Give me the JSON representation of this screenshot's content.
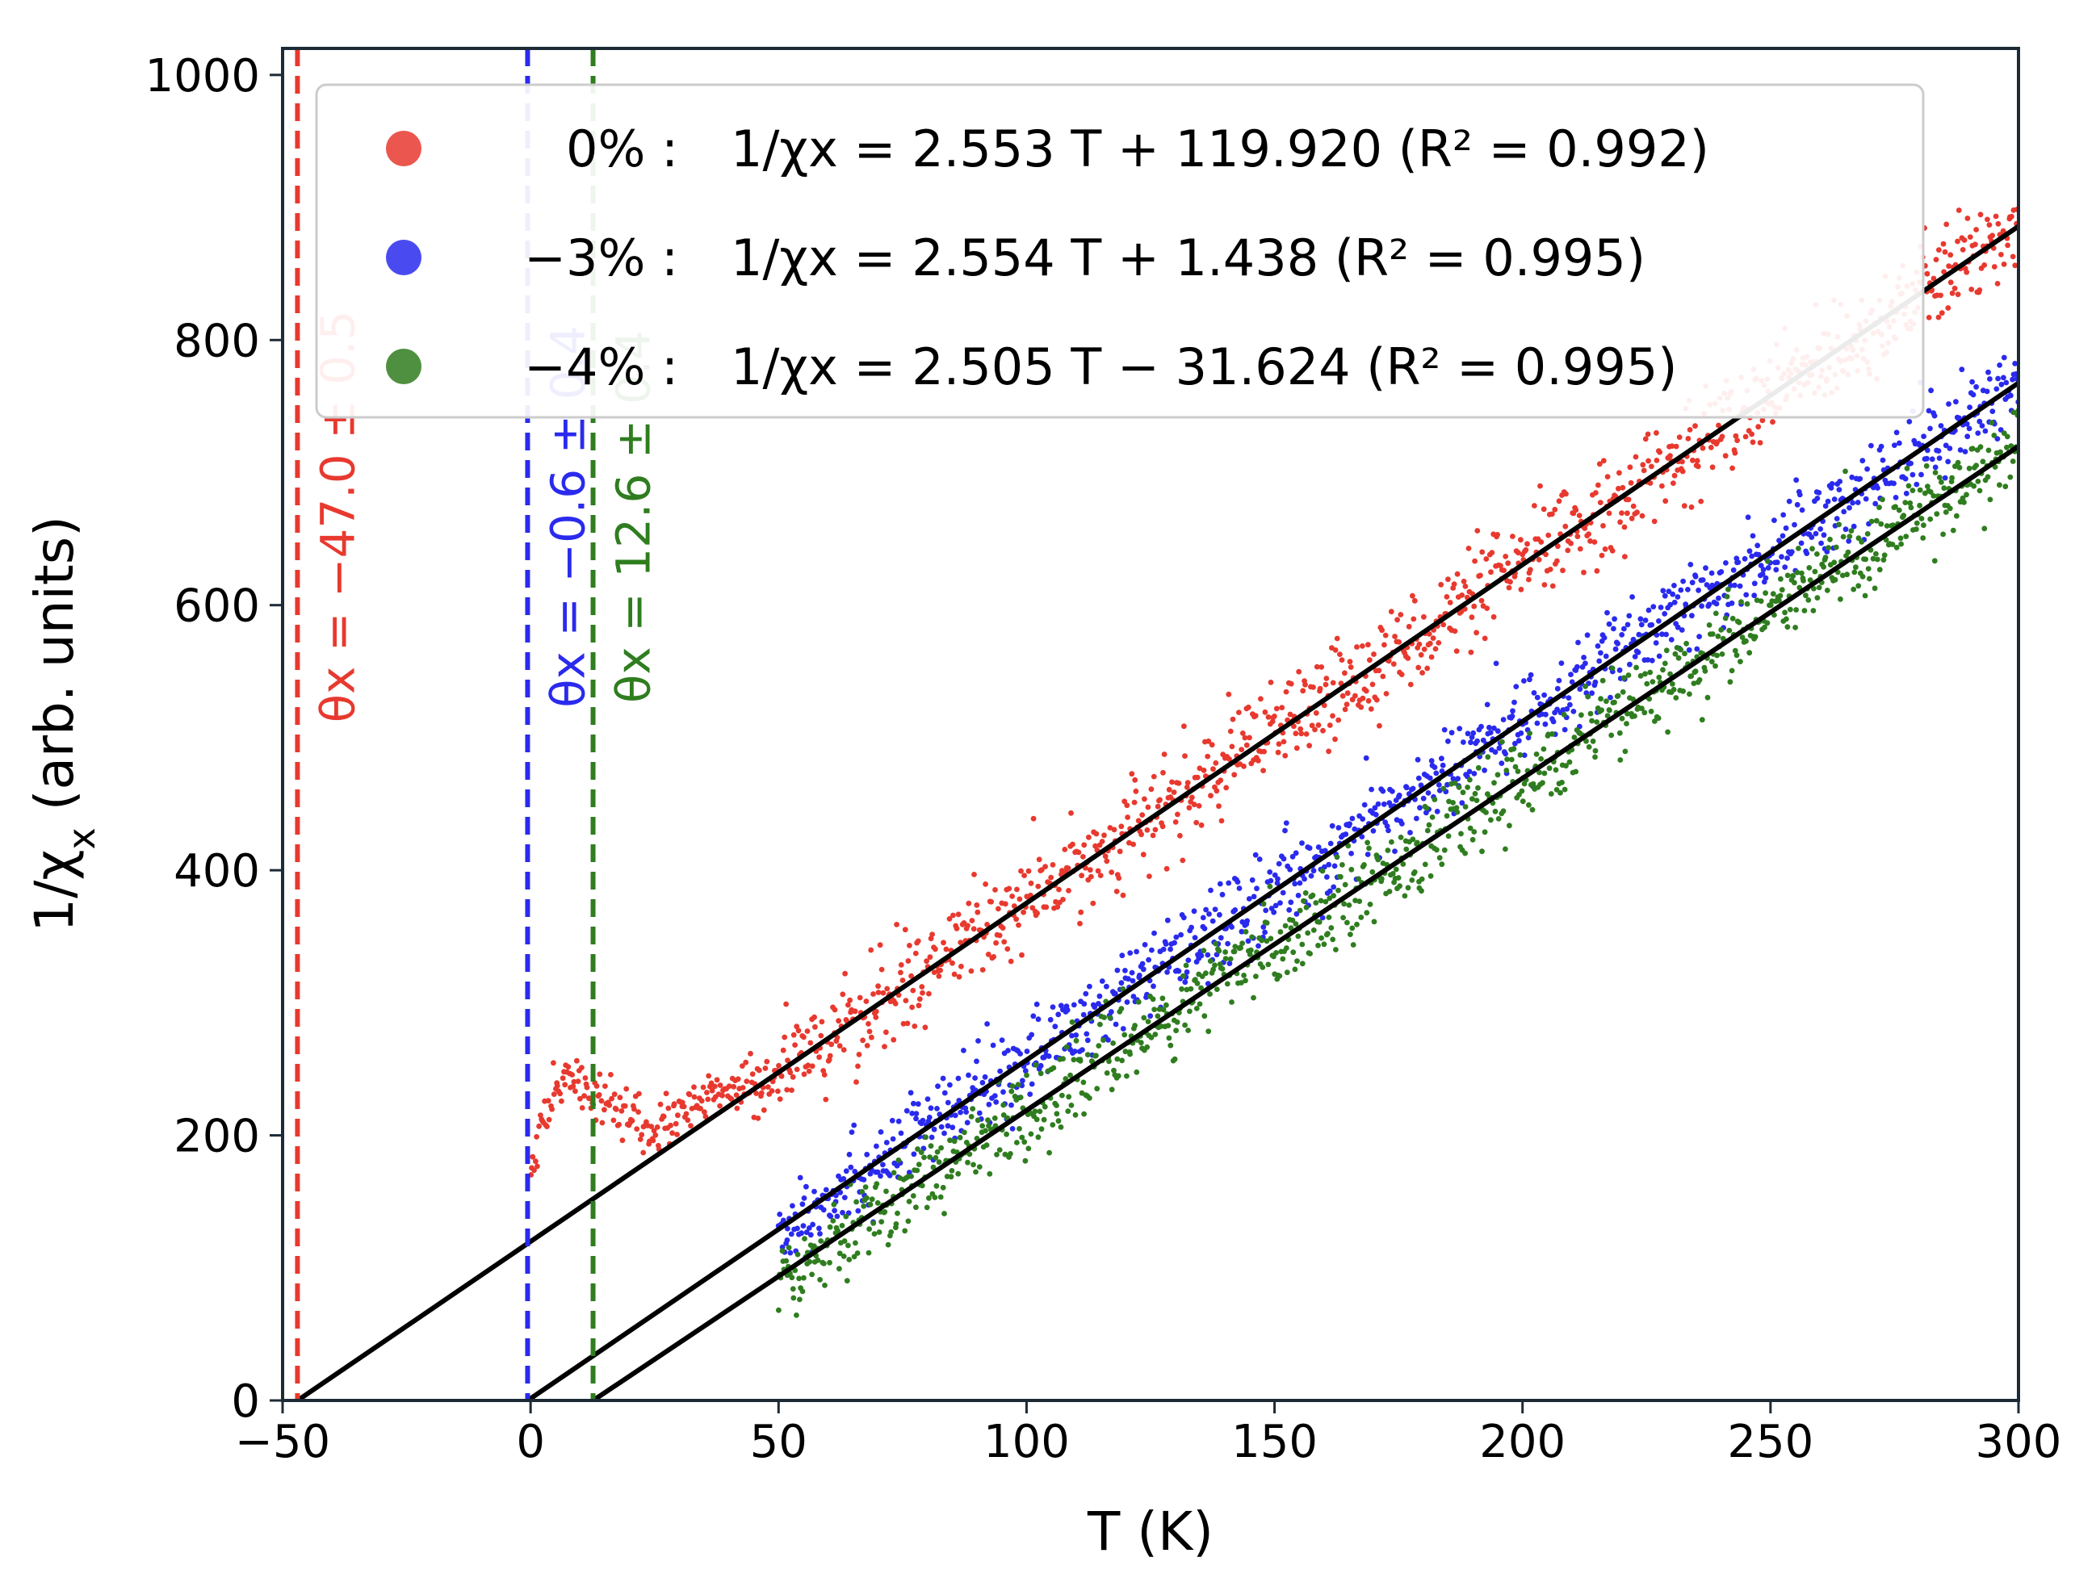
{
  "chart_data": {
    "type": "scatter",
    "xlabel": "T (K)",
    "ylabel": "1/χ_x (arb. units)",
    "xlim": [
      -50,
      300
    ],
    "ylim": [
      0,
      1020
    ],
    "x_ticks": [
      -50,
      0,
      50,
      100,
      150,
      200,
      250,
      300
    ],
    "y_ticks": [
      0,
      200,
      400,
      600,
      800,
      1000
    ],
    "x_tick_labels": [
      "−50",
      "0",
      "50",
      "100",
      "150",
      "200",
      "250",
      "300"
    ],
    "y_tick_labels": [
      "0",
      "200",
      "400",
      "600",
      "800",
      "1000"
    ],
    "grid": false,
    "legend_position": "top-center",
    "series": [
      {
        "name": "0%",
        "legend_label": "0% :  1/χx = 2.553 T + 119.920 (R² = 0.992)",
        "color": "#e8392f",
        "fit": {
          "slope": 2.553,
          "intercept": 119.92,
          "r2": 0.992
        },
        "data_range": [
          0,
          300
        ],
        "noise": 18,
        "anomaly": [
          {
            "x": 0,
            "y": 180
          },
          {
            "x": 2,
            "y": 205
          },
          {
            "x": 5,
            "y": 228
          },
          {
            "x": 7,
            "y": 250
          },
          {
            "x": 9,
            "y": 243
          },
          {
            "x": 12,
            "y": 230
          },
          {
            "x": 15,
            "y": 225
          },
          {
            "x": 18,
            "y": 215
          },
          {
            "x": 22,
            "y": 205
          },
          {
            "x": 26,
            "y": 208
          },
          {
            "x": 30,
            "y": 215
          },
          {
            "x": 35,
            "y": 225
          },
          {
            "x": 40,
            "y": 235
          },
          {
            "x": 45,
            "y": 245
          }
        ],
        "theta": {
          "value": -47.0,
          "label": "θx = −47.0 ± 0.5"
        }
      },
      {
        "name": "−3%",
        "legend_label": "−3% :  1/χx = 2.554 T + 1.438 (R² = 0.995)",
        "color": "#2a2aee",
        "fit": {
          "slope": 2.554,
          "intercept": 1.438,
          "r2": 0.995
        },
        "data_range": [
          50,
          300
        ],
        "noise": 16,
        "theta": {
          "value": -0.6,
          "label": "θx = −0.6 ± 0.4"
        }
      },
      {
        "name": "−4%",
        "legend_label": "−4% :  1/χx = 2.505 T − 31.624 (R² = 0.995)",
        "color": "#2f7d1f",
        "fit": {
          "slope": 2.505,
          "intercept": -31.624,
          "r2": 0.995
        },
        "data_range": [
          50,
          300
        ],
        "noise": 16,
        "theta": {
          "value": 12.6,
          "label": "θx = 12.6 ± 0.4"
        }
      }
    ]
  }
}
